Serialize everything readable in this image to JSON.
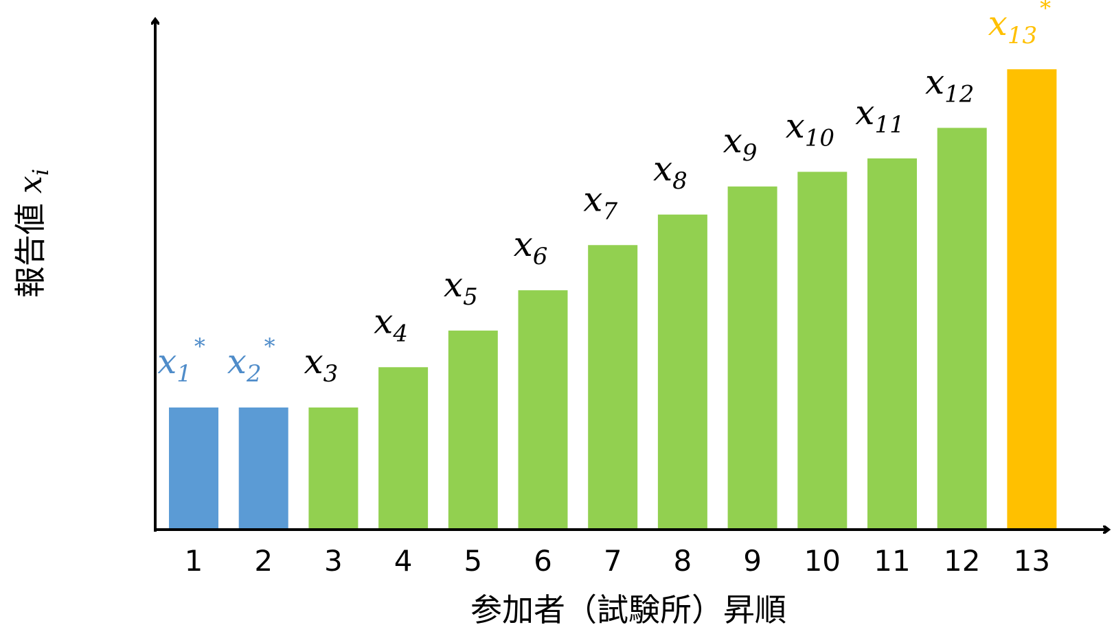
{
  "chart_data": {
    "type": "bar",
    "xlabel": "参加者（試験所）昇順",
    "ylabel": "報告値",
    "ylabel_symbol": "x",
    "ylabel_symbol_sub": "i",
    "categories": [
      "1",
      "2",
      "3",
      "4",
      "5",
      "6",
      "7",
      "8",
      "9",
      "10",
      "11",
      "12",
      "13"
    ],
    "values": [
      1.0,
      1.0,
      1.0,
      1.33,
      1.63,
      1.96,
      2.33,
      2.58,
      2.81,
      2.93,
      3.04,
      3.29,
      3.77
    ],
    "ylim": [
      0,
      4.0
    ],
    "grid": false,
    "legend": "none",
    "bars": [
      {
        "var": "x",
        "sub": "1",
        "star": "*",
        "group": "low"
      },
      {
        "var": "x",
        "sub": "2",
        "star": "*",
        "group": "low"
      },
      {
        "var": "x",
        "sub": "3",
        "star": "",
        "group": "normal"
      },
      {
        "var": "x",
        "sub": "4",
        "star": "",
        "group": "normal"
      },
      {
        "var": "x",
        "sub": "5",
        "star": "",
        "group": "normal"
      },
      {
        "var": "x",
        "sub": "6",
        "star": "",
        "group": "normal"
      },
      {
        "var": "x",
        "sub": "7",
        "star": "",
        "group": "normal"
      },
      {
        "var": "x",
        "sub": "8",
        "star": "",
        "group": "normal"
      },
      {
        "var": "x",
        "sub": "9",
        "star": "",
        "group": "normal"
      },
      {
        "var": "x",
        "sub": "10",
        "star": "",
        "group": "normal"
      },
      {
        "var": "x",
        "sub": "11",
        "star": "",
        "group": "normal"
      },
      {
        "var": "x",
        "sub": "12",
        "star": "",
        "group": "normal"
      },
      {
        "var": "x",
        "sub": "13",
        "star": "*",
        "group": "high"
      }
    ],
    "colors": {
      "low": "#5B9BD5",
      "normal": "#92D050",
      "high": "#FFC000",
      "label_low": "#4F8CC9",
      "label_normal": "#000000",
      "label_high": "#FFC000",
      "axis": "#000000"
    }
  }
}
